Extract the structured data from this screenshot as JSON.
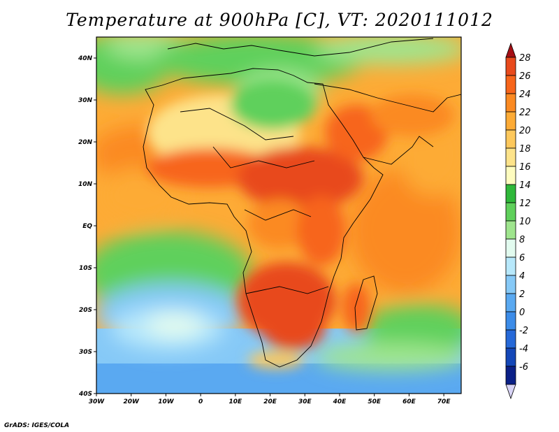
{
  "title": "Temperature at 900hPa [C], VT: 2020111012",
  "credit": "GrADS: IGES/COLA",
  "map": {
    "lon_range": [
      -30,
      75
    ],
    "lat_range": [
      -40,
      45
    ],
    "lon_ticks": [
      {
        "value": -30,
        "label": "30W"
      },
      {
        "value": -20,
        "label": "20W"
      },
      {
        "value": -10,
        "label": "10W"
      },
      {
        "value": 0,
        "label": "0"
      },
      {
        "value": 10,
        "label": "10E"
      },
      {
        "value": 20,
        "label": "20E"
      },
      {
        "value": 30,
        "label": "30E"
      },
      {
        "value": 40,
        "label": "40E"
      },
      {
        "value": 50,
        "label": "50E"
      },
      {
        "value": 60,
        "label": "60E"
      },
      {
        "value": 70,
        "label": "70E"
      }
    ],
    "lat_ticks": [
      {
        "value": 40,
        "label": "40N"
      },
      {
        "value": 30,
        "label": "30N"
      },
      {
        "value": 20,
        "label": "20N"
      },
      {
        "value": 10,
        "label": "10N"
      },
      {
        "value": 0,
        "label": "EQ"
      },
      {
        "value": -10,
        "label": "10S"
      },
      {
        "value": -20,
        "label": "20S"
      },
      {
        "value": -30,
        "label": "30S"
      },
      {
        "value": -40,
        "label": "40S"
      }
    ]
  },
  "colorbar": {
    "levels": [
      {
        "label": "28",
        "color": "#e84a1c"
      },
      {
        "label": "26",
        "color": "#f7651b"
      },
      {
        "label": "24",
        "color": "#fb8a22"
      },
      {
        "label": "22",
        "color": "#fdab36"
      },
      {
        "label": "20",
        "color": "#fdc85c"
      },
      {
        "label": "18",
        "color": "#fde38a"
      },
      {
        "label": "16",
        "color": "#fefcbf"
      },
      {
        "label": "14",
        "color": "#2fb83a"
      },
      {
        "label": "12",
        "color": "#5fd05b"
      },
      {
        "label": "10",
        "color": "#9fe58e"
      },
      {
        "label": "8",
        "color": "#e2fbef"
      },
      {
        "label": "6",
        "color": "#b7e8fb"
      },
      {
        "label": "4",
        "color": "#86c9f7"
      },
      {
        "label": "2",
        "color": "#5aa9f1"
      },
      {
        "label": "0",
        "color": "#3c8ce8"
      },
      {
        "label": "-2",
        "color": "#2669d8"
      },
      {
        "label": "-4",
        "color": "#1447b8"
      },
      {
        "label": "-6",
        "color": "#0b2087"
      }
    ],
    "top_color": "#a50f15",
    "bottom_color": "#d8d4f6"
  }
}
